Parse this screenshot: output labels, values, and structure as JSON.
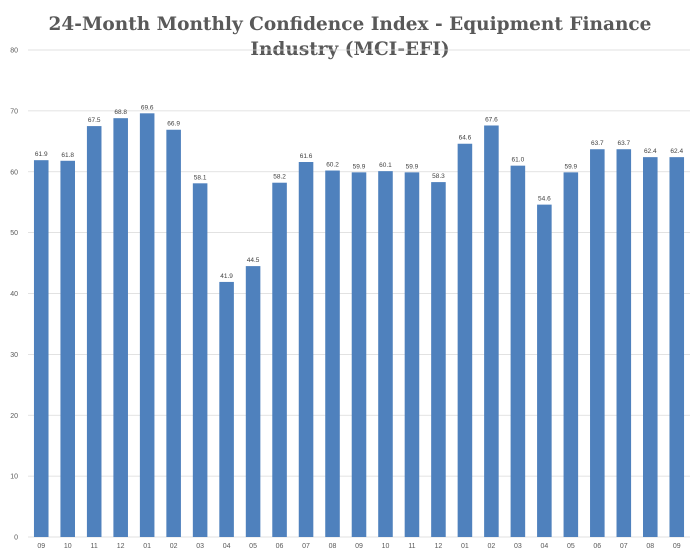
{
  "chart_data": {
    "type": "bar",
    "title_line1": "24-Month Monthly Confidence Index - Equipment Finance",
    "title_line2": "Industry (MCI-EFI)",
    "categories": [
      "09",
      "10",
      "11",
      "12",
      "01",
      "02",
      "03",
      "04",
      "05",
      "06",
      "07",
      "08",
      "09",
      "10",
      "11",
      "12",
      "01",
      "02",
      "03",
      "04",
      "05",
      "06",
      "07",
      "08",
      "09"
    ],
    "values": [
      61.9,
      61.8,
      67.5,
      68.8,
      69.6,
      66.9,
      58.1,
      41.9,
      44.5,
      58.2,
      61.6,
      60.2,
      59.9,
      60.1,
      59.9,
      58.3,
      64.6,
      67.6,
      61.0,
      54.6,
      59.9,
      63.7,
      63.7,
      62.4,
      62.4
    ],
    "value_labels": [
      "61.9",
      "61.8",
      "67.5",
      "68.8",
      "69.6",
      "66.9",
      "58.1",
      "41.9",
      "44.5",
      "58.2",
      "61.6",
      "60.2",
      "59.9",
      "60.1",
      "59.9",
      "58.3",
      "64.6",
      "67.6",
      "61.0",
      "54.6",
      "59.9",
      "63.7",
      "63.7",
      "62.4",
      "62.4"
    ],
    "ylim": [
      0,
      80
    ],
    "yticks": [
      "0",
      "10",
      "20",
      "30",
      "40",
      "50",
      "60",
      "70",
      "80"
    ],
    "grid": true,
    "bar_color": "#4f81bd",
    "grid_color": "#d9d9d9"
  }
}
